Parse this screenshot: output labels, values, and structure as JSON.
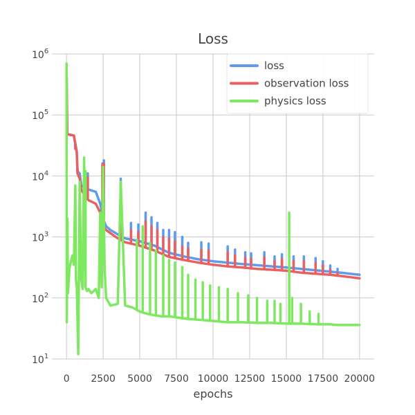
{
  "chart_data": {
    "type": "line",
    "title": "Loss",
    "xlabel": "epochs",
    "ylabel": "",
    "xlim": [
      -1000,
      21000
    ],
    "ylim": [
      10,
      1000000
    ],
    "yscale": "log",
    "grid": true,
    "legend_position": "top-right",
    "x_ticks": [
      0,
      2500,
      5000,
      7500,
      10000,
      12500,
      15000,
      17500,
      20000
    ],
    "x_tick_labels": [
      "0",
      "2500",
      "5000",
      "7500",
      "10000",
      "12500",
      "15000",
      "17500",
      "20000"
    ],
    "y_ticks": [
      10,
      100,
      1000,
      10000,
      100000,
      1000000
    ],
    "y_tick_exponents": [
      "1",
      "2",
      "3",
      "4",
      "5",
      "6"
    ],
    "y_tick_base": "10",
    "series": [
      {
        "name": "loss",
        "color": "#5c9bf0",
        "x": [
          0,
          50,
          100,
          300,
          500,
          700,
          750,
          900,
          1000,
          1200,
          1500,
          2000,
          2300,
          2500,
          2600,
          2700,
          3000,
          3500,
          4000,
          5000,
          6000,
          7000,
          8000,
          9000,
          10000,
          11000,
          12000,
          13000,
          14000,
          15000,
          16000,
          17000,
          18000,
          19000,
          20000
        ],
        "values": [
          650000,
          48000,
          48000,
          47000,
          46000,
          25000,
          12000,
          11000,
          7000,
          6500,
          6000,
          5500,
          3500,
          2000,
          1700,
          1500,
          1300,
          1100,
          950,
          850,
          720,
          550,
          480,
          430,
          400,
          380,
          360,
          345,
          330,
          315,
          300,
          285,
          270,
          255,
          240
        ],
        "spikes": [
          [
            600,
            30000
          ],
          [
            750,
            13000
          ],
          [
            1450,
            11000
          ],
          [
            2450,
            16000
          ],
          [
            2550,
            18000
          ],
          [
            3700,
            9000
          ],
          [
            4400,
            1700
          ],
          [
            4900,
            1600
          ],
          [
            5400,
            2500
          ],
          [
            5800,
            2100
          ],
          [
            6200,
            1700
          ],
          [
            6600,
            1300
          ],
          [
            7000,
            1300
          ],
          [
            7400,
            1200
          ],
          [
            7900,
            1000
          ],
          [
            8300,
            800
          ],
          [
            9200,
            820
          ],
          [
            9700,
            780
          ],
          [
            11000,
            700
          ],
          [
            11500,
            620
          ],
          [
            12200,
            560
          ],
          [
            12600,
            540
          ],
          [
            13500,
            560
          ],
          [
            14200,
            480
          ],
          [
            14700,
            520
          ],
          [
            15500,
            480
          ],
          [
            16200,
            480
          ],
          [
            17000,
            450
          ],
          [
            17500,
            400
          ],
          [
            18000,
            340
          ],
          [
            18500,
            300
          ]
        ]
      },
      {
        "name": "observation loss",
        "color": "#e96060",
        "x": [
          0,
          50,
          100,
          300,
          500,
          700,
          750,
          900,
          1000,
          1200,
          1500,
          2000,
          2300,
          2500,
          2600,
          2700,
          3000,
          3500,
          4000,
          5000,
          6000,
          7000,
          8000,
          9000,
          10000,
          11000,
          12000,
          13000,
          14000,
          15000,
          16000,
          17000,
          18000,
          19000,
          20000
        ],
        "values": [
          600000,
          48000,
          48000,
          47000,
          46000,
          24000,
          11000,
          9000,
          6000,
          5000,
          4000,
          3500,
          2500,
          1500,
          1400,
          1300,
          1150,
          950,
          820,
          720,
          600,
          470,
          420,
          380,
          350,
          330,
          315,
          300,
          290,
          280,
          260,
          250,
          240,
          225,
          210
        ],
        "spikes": [
          [
            600,
            28000
          ],
          [
            750,
            12000
          ],
          [
            1450,
            9500
          ],
          [
            2450,
            15000
          ],
          [
            2550,
            16000
          ],
          [
            3700,
            8000
          ],
          [
            4400,
            1300
          ],
          [
            4900,
            1200
          ],
          [
            5400,
            1800
          ],
          [
            5800,
            1500
          ],
          [
            6200,
            1300
          ],
          [
            6600,
            1000
          ],
          [
            7000,
            950
          ],
          [
            7400,
            850
          ],
          [
            7900,
            700
          ],
          [
            8300,
            650
          ],
          [
            9200,
            620
          ],
          [
            9700,
            600
          ],
          [
            11000,
            560
          ],
          [
            11500,
            500
          ],
          [
            12200,
            460
          ],
          [
            12600,
            440
          ],
          [
            13500,
            460
          ],
          [
            14200,
            400
          ],
          [
            14700,
            440
          ],
          [
            15500,
            400
          ],
          [
            16200,
            400
          ],
          [
            17000,
            380
          ],
          [
            17500,
            340
          ],
          [
            18000,
            290
          ],
          [
            18500,
            260
          ]
        ]
      },
      {
        "name": "physics loss",
        "color": "#7ee860",
        "x": [
          0,
          20,
          60,
          100,
          200,
          300,
          400,
          500,
          600,
          650,
          700,
          800,
          900,
          1000,
          1100,
          1200,
          1300,
          1400,
          1500,
          1700,
          2000,
          2200,
          2300,
          2400,
          2500,
          2600,
          2700,
          3000,
          3500,
          3700,
          4000,
          4500,
          5000,
          5500,
          6000,
          6500,
          7000,
          7500,
          8000,
          9000,
          10000,
          11000,
          12000,
          13000,
          14000,
          15000,
          15500,
          16000,
          17000,
          18000,
          18500,
          19000,
          20000
        ],
        "values": [
          700000,
          40,
          2000,
          120,
          300,
          400,
          500,
          350,
          7000,
          200,
          150,
          12,
          8000,
          200,
          140,
          20000,
          150,
          130,
          140,
          120,
          140,
          100,
          2500,
          150,
          14000,
          300,
          100,
          75,
          80,
          8000,
          75,
          70,
          60,
          55,
          52,
          50,
          50,
          48,
          46,
          44,
          42,
          40,
          40,
          39,
          39,
          38,
          38,
          38,
          37,
          37,
          36,
          36,
          36
        ],
        "spikes": [
          [
            1300,
            12000
          ],
          [
            2500,
            14000
          ],
          [
            3700,
            8000
          ],
          [
            4800,
            900
          ],
          [
            5200,
            1500
          ],
          [
            5700,
            800
          ],
          [
            6100,
            600
          ],
          [
            6600,
            500
          ],
          [
            7000,
            420
          ],
          [
            7400,
            380
          ],
          [
            7900,
            320
          ],
          [
            8300,
            240
          ],
          [
            8800,
            200
          ],
          [
            9300,
            180
          ],
          [
            9800,
            160
          ],
          [
            10400,
            150
          ],
          [
            11000,
            140
          ],
          [
            11700,
            120
          ],
          [
            12400,
            110
          ],
          [
            13000,
            100
          ],
          [
            13700,
            90
          ],
          [
            14200,
            90
          ],
          [
            14600,
            80
          ],
          [
            15200,
            2500
          ],
          [
            15400,
            100
          ],
          [
            16000,
            80
          ],
          [
            16600,
            60
          ],
          [
            17200,
            55
          ]
        ]
      }
    ]
  }
}
